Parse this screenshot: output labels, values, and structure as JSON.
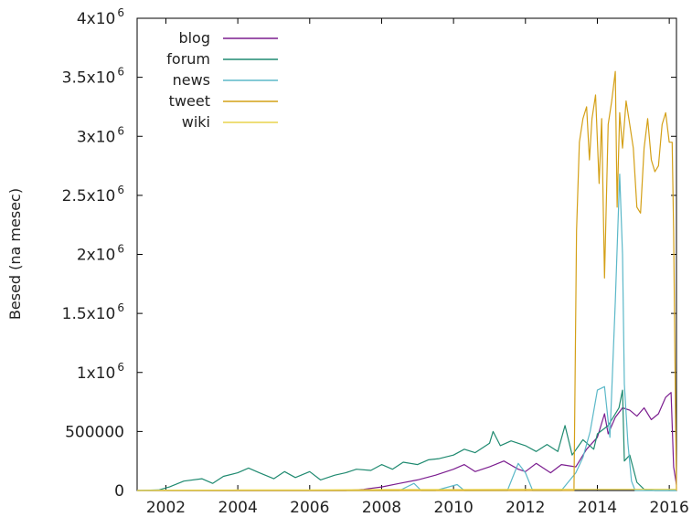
{
  "chart_data": {
    "type": "line",
    "title": "",
    "xlabel": "",
    "ylabel": "Besed (na mesec)",
    "xlim": [
      2001.2,
      2016.2
    ],
    "ylim": [
      0,
      4000000
    ],
    "grid": false,
    "legend_position": "top-left",
    "x_ticks": [
      {
        "value": 2002,
        "label": "2002"
      },
      {
        "value": 2004,
        "label": "2004"
      },
      {
        "value": 2006,
        "label": "2006"
      },
      {
        "value": 2008,
        "label": "2008"
      },
      {
        "value": 2010,
        "label": "2010"
      },
      {
        "value": 2012,
        "label": "2012"
      },
      {
        "value": 2014,
        "label": "2014"
      },
      {
        "value": 2016,
        "label": "2016"
      }
    ],
    "y_ticks": [
      {
        "value": 0,
        "label": "0"
      },
      {
        "value": 500000,
        "label": "500000"
      },
      {
        "value": 1000000,
        "label": "1x10",
        "exp": "6"
      },
      {
        "value": 1500000,
        "label": "1.5x10",
        "exp": "6"
      },
      {
        "value": 2000000,
        "label": "2x10",
        "exp": "6"
      },
      {
        "value": 2500000,
        "label": "2.5x10",
        "exp": "6"
      },
      {
        "value": 3000000,
        "label": "3x10",
        "exp": "6"
      },
      {
        "value": 3500000,
        "label": "3.5x10",
        "exp": "6"
      },
      {
        "value": 4000000,
        "label": "4x10",
        "exp": "6"
      }
    ],
    "series": [
      {
        "name": "blog",
        "color": "#7b1d8f",
        "points": [
          [
            2001.2,
            0
          ],
          [
            2007.0,
            0
          ],
          [
            2007.5,
            10000
          ],
          [
            2008.0,
            30000
          ],
          [
            2008.5,
            60000
          ],
          [
            2009.0,
            90000
          ],
          [
            2009.5,
            130000
          ],
          [
            2010.0,
            180000
          ],
          [
            2010.3,
            220000
          ],
          [
            2010.6,
            160000
          ],
          [
            2011.0,
            200000
          ],
          [
            2011.4,
            250000
          ],
          [
            2011.8,
            180000
          ],
          [
            2012.0,
            160000
          ],
          [
            2012.3,
            230000
          ],
          [
            2012.7,
            150000
          ],
          [
            2013.0,
            220000
          ],
          [
            2013.4,
            200000
          ],
          [
            2013.7,
            350000
          ],
          [
            2014.0,
            450000
          ],
          [
            2014.2,
            650000
          ],
          [
            2014.3,
            480000
          ],
          [
            2014.5,
            620000
          ],
          [
            2014.7,
            700000
          ],
          [
            2014.9,
            680000
          ],
          [
            2015.1,
            630000
          ],
          [
            2015.3,
            700000
          ],
          [
            2015.5,
            600000
          ],
          [
            2015.7,
            650000
          ],
          [
            2015.9,
            790000
          ],
          [
            2016.05,
            830000
          ],
          [
            2016.12,
            200000
          ],
          [
            2016.2,
            50000
          ]
        ]
      },
      {
        "name": "forum",
        "color": "#1f8a70",
        "points": [
          [
            2001.2,
            0
          ],
          [
            2001.8,
            5000
          ],
          [
            2002.1,
            30000
          ],
          [
            2002.5,
            80000
          ],
          [
            2003.0,
            100000
          ],
          [
            2003.3,
            60000
          ],
          [
            2003.6,
            120000
          ],
          [
            2004.0,
            150000
          ],
          [
            2004.3,
            190000
          ],
          [
            2004.6,
            150000
          ],
          [
            2005.0,
            100000
          ],
          [
            2005.3,
            160000
          ],
          [
            2005.6,
            110000
          ],
          [
            2006.0,
            160000
          ],
          [
            2006.3,
            90000
          ],
          [
            2006.7,
            130000
          ],
          [
            2007.0,
            150000
          ],
          [
            2007.3,
            180000
          ],
          [
            2007.7,
            170000
          ],
          [
            2008.0,
            220000
          ],
          [
            2008.3,
            180000
          ],
          [
            2008.6,
            240000
          ],
          [
            2009.0,
            220000
          ],
          [
            2009.3,
            260000
          ],
          [
            2009.6,
            270000
          ],
          [
            2010.0,
            300000
          ],
          [
            2010.3,
            350000
          ],
          [
            2010.6,
            320000
          ],
          [
            2011.0,
            400000
          ],
          [
            2011.1,
            500000
          ],
          [
            2011.3,
            380000
          ],
          [
            2011.6,
            420000
          ],
          [
            2012.0,
            380000
          ],
          [
            2012.3,
            330000
          ],
          [
            2012.6,
            390000
          ],
          [
            2012.9,
            330000
          ],
          [
            2013.1,
            550000
          ],
          [
            2013.3,
            300000
          ],
          [
            2013.6,
            430000
          ],
          [
            2013.9,
            350000
          ],
          [
            2014.0,
            480000
          ],
          [
            2014.3,
            550000
          ],
          [
            2014.6,
            700000
          ],
          [
            2014.7,
            850000
          ],
          [
            2014.75,
            250000
          ],
          [
            2014.9,
            300000
          ],
          [
            2015.1,
            70000
          ],
          [
            2015.3,
            10000
          ],
          [
            2015.6,
            0
          ],
          [
            2016.0,
            0
          ],
          [
            2016.2,
            0
          ]
        ]
      },
      {
        "name": "news",
        "color": "#5bb8c8",
        "points": [
          [
            2001.2,
            0
          ],
          [
            2008.5,
            0
          ],
          [
            2008.9,
            60000
          ],
          [
            2009.1,
            0
          ],
          [
            2009.5,
            0
          ],
          [
            2010.1,
            50000
          ],
          [
            2010.3,
            0
          ],
          [
            2011.5,
            0
          ],
          [
            2011.8,
            230000
          ],
          [
            2012.0,
            150000
          ],
          [
            2012.2,
            0
          ],
          [
            2013.0,
            0
          ],
          [
            2013.4,
            150000
          ],
          [
            2013.6,
            280000
          ],
          [
            2013.8,
            500000
          ],
          [
            2014.0,
            850000
          ],
          [
            2014.2,
            880000
          ],
          [
            2014.35,
            450000
          ],
          [
            2014.5,
            1600000
          ],
          [
            2014.62,
            2680000
          ],
          [
            2014.7,
            2000000
          ],
          [
            2014.75,
            900000
          ],
          [
            2014.85,
            400000
          ],
          [
            2014.95,
            80000
          ],
          [
            2015.05,
            0
          ],
          [
            2015.5,
            0
          ],
          [
            2016.2,
            0
          ]
        ]
      },
      {
        "name": "tweet",
        "color": "#d4a017",
        "points": [
          [
            2001.2,
            0
          ],
          [
            2013.35,
            0
          ],
          [
            2013.42,
            2200000
          ],
          [
            2013.5,
            2950000
          ],
          [
            2013.6,
            3150000
          ],
          [
            2013.7,
            3250000
          ],
          [
            2013.78,
            2800000
          ],
          [
            2013.85,
            3150000
          ],
          [
            2013.95,
            3350000
          ],
          [
            2014.05,
            2600000
          ],
          [
            2014.12,
            3150000
          ],
          [
            2014.2,
            1800000
          ],
          [
            2014.3,
            3100000
          ],
          [
            2014.4,
            3300000
          ],
          [
            2014.5,
            3550000
          ],
          [
            2014.55,
            2400000
          ],
          [
            2014.62,
            3200000
          ],
          [
            2014.7,
            2900000
          ],
          [
            2014.8,
            3300000
          ],
          [
            2014.9,
            3100000
          ],
          [
            2015.0,
            2900000
          ],
          [
            2015.1,
            2400000
          ],
          [
            2015.2,
            2350000
          ],
          [
            2015.3,
            2900000
          ],
          [
            2015.4,
            3150000
          ],
          [
            2015.5,
            2800000
          ],
          [
            2015.6,
            2700000
          ],
          [
            2015.7,
            2750000
          ],
          [
            2015.8,
            3100000
          ],
          [
            2015.9,
            3200000
          ],
          [
            2016.0,
            2950000
          ],
          [
            2016.08,
            2950000
          ],
          [
            2016.12,
            2200000
          ],
          [
            2016.18,
            500000
          ],
          [
            2016.2,
            0
          ]
        ]
      },
      {
        "name": "wiki",
        "color": "#e8d44d",
        "points": [
          [
            2001.2,
            0
          ],
          [
            2002.0,
            3000
          ],
          [
            2004.0,
            5000
          ],
          [
            2006.0,
            5000
          ],
          [
            2008.0,
            8000
          ],
          [
            2010.0,
            8000
          ],
          [
            2012.0,
            10000
          ],
          [
            2014.0,
            10000
          ],
          [
            2016.2,
            10000
          ]
        ]
      }
    ]
  }
}
